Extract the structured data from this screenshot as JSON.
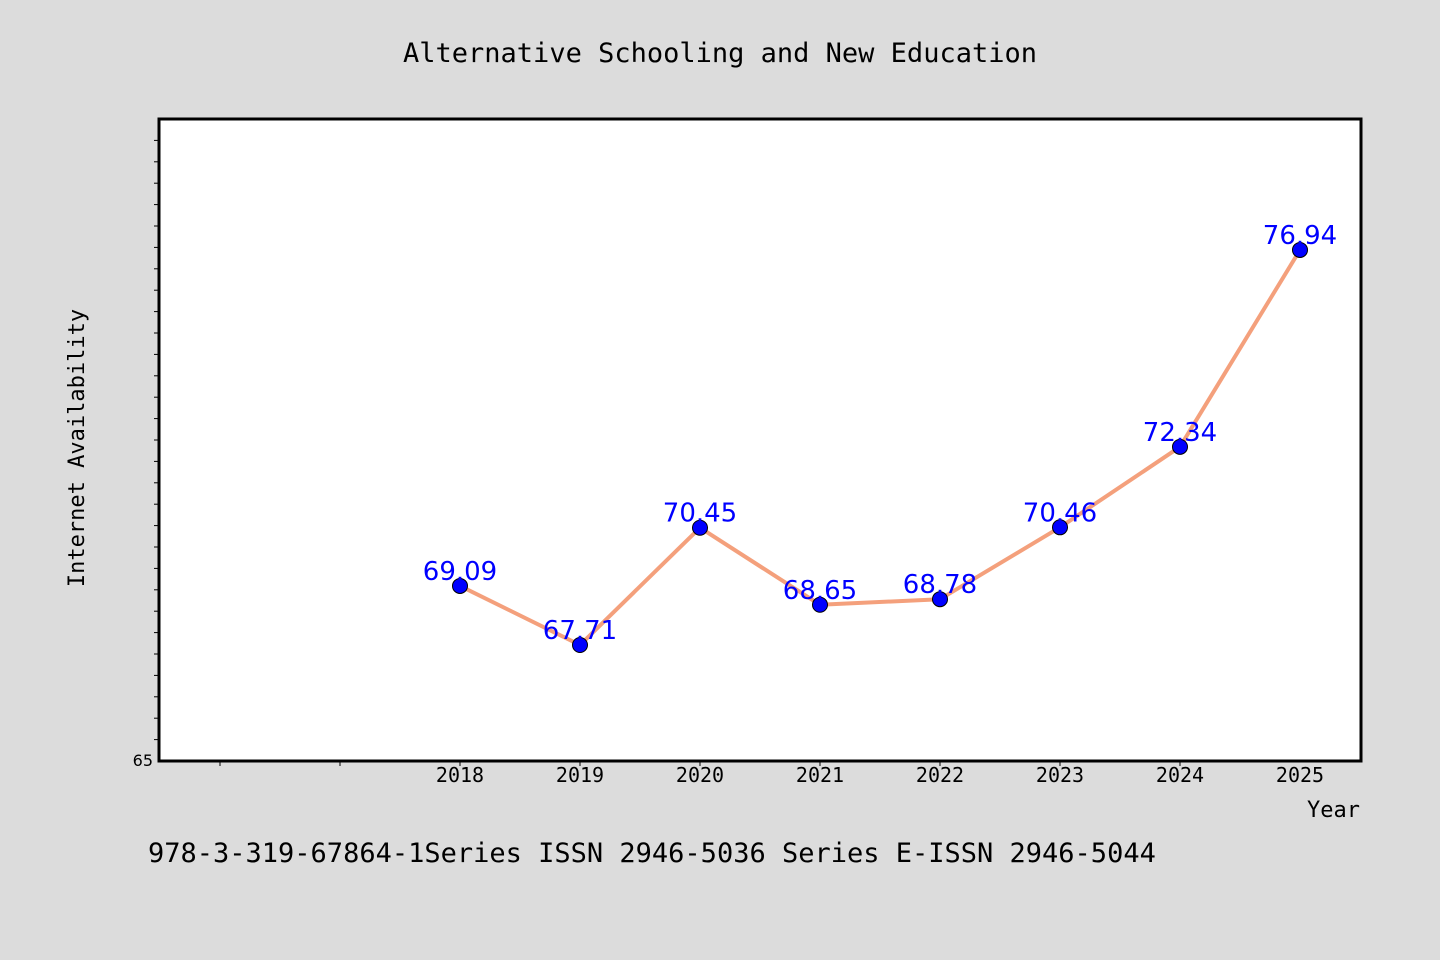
{
  "chart_data": {
    "type": "line",
    "title": "Alternative Schooling and New Education",
    "xlabel": "Year",
    "ylabel": "Internet Availability",
    "x": [
      "2018",
      "2019",
      "2020",
      "2021",
      "2022",
      "2023",
      "2024",
      "2025"
    ],
    "series": [
      {
        "values": [
          69.09,
          67.71,
          70.45,
          68.65,
          68.78,
          70.46,
          72.34,
          76.94
        ]
      }
    ],
    "data_labels": [
      "69.09",
      "67.71",
      "70.45",
      "68.65",
      "68.78",
      "70.46",
      "72.34",
      "76.94"
    ],
    "ytick_labels": [
      "65"
    ],
    "ylim": [
      65,
      80
    ],
    "line_color": "#f4a07c",
    "marker_color": "#0000ff",
    "label_color": "#0000ff",
    "plot_background": "#ffffff",
    "page_background": "#dcdcdc",
    "grid": false,
    "legend": "none"
  },
  "footer": {
    "text": "978-3-319-67864-1Series ISSN 2946-5036 Series E-ISSN 2946-5044"
  }
}
